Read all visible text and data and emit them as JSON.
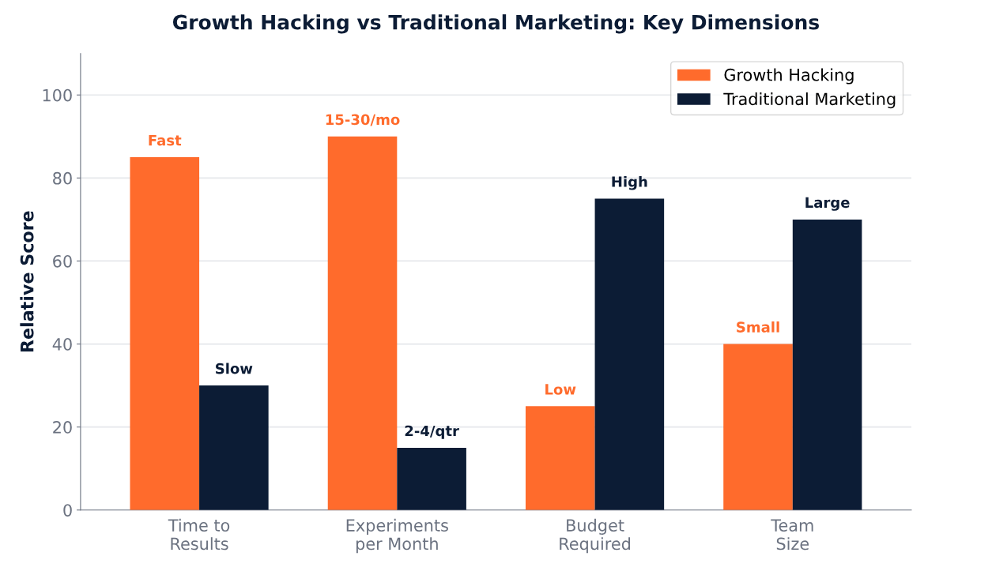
{
  "chart_data": {
    "type": "bar",
    "title": "Growth Hacking vs Traditional Marketing: Key Dimensions",
    "ylabel": "Relative Score",
    "categories": [
      "Time to\nResults",
      "Experiments\nper Month",
      "Budget\nRequired",
      "Team\nSize"
    ],
    "series": [
      {
        "name": "Growth Hacking",
        "color": "#ff6b2c",
        "values": [
          85,
          90,
          25,
          40
        ],
        "value_labels": [
          "Fast",
          "15-30/mo",
          "Low",
          "Small"
        ]
      },
      {
        "name": "Traditional Marketing",
        "color": "#0c1c35",
        "values": [
          30,
          15,
          75,
          70
        ],
        "value_labels": [
          "Slow",
          "2-4/qtr",
          "High",
          "Large"
        ]
      }
    ],
    "ylim": [
      0,
      110
    ],
    "yticks": [
      0,
      20,
      40,
      60,
      80,
      100
    ],
    "grid": "y",
    "legend": "top right"
  }
}
